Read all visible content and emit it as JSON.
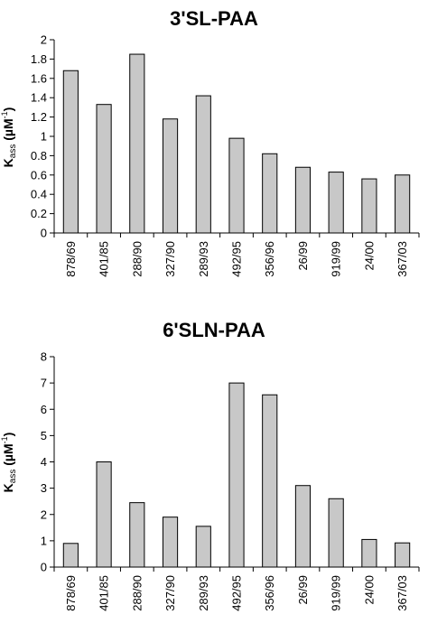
{
  "chart_data": [
    {
      "type": "bar",
      "title": "3'SL-PAA",
      "ylabel_main": "K",
      "ylabel_sub": "ass",
      "ylabel_unit": " (µM",
      "ylabel_sup": "-1",
      "ylabel_close": ")",
      "ylim": [
        0,
        2
      ],
      "yticks": [
        "0",
        "0.2",
        "0.4",
        "0.6",
        "0.8",
        "1",
        "1.2",
        "1.4",
        "1.6",
        "1.8",
        "2"
      ],
      "ytick_values": [
        0,
        0.2,
        0.4,
        0.6,
        0.8,
        1,
        1.2,
        1.4,
        1.6,
        1.8,
        2
      ],
      "categories": [
        "878/69",
        "401/85",
        "288/90",
        "327/90",
        "289/93",
        "492/95",
        "356/96",
        "26/99",
        "919/99",
        "24/00",
        "367/03"
      ],
      "values": [
        1.68,
        1.33,
        1.85,
        1.18,
        1.42,
        0.98,
        0.82,
        0.68,
        0.63,
        0.56,
        0.6
      ],
      "grid": false,
      "bar_color": "#c8c8c8"
    },
    {
      "type": "bar",
      "title": "6'SLN-PAA",
      "ylabel_main": "K",
      "ylabel_sub": "ass",
      "ylabel_unit": " (µM",
      "ylabel_sup": "-1",
      "ylabel_close": ")",
      "ylim": [
        0,
        8
      ],
      "yticks": [
        "0",
        "1",
        "2",
        "3",
        "4",
        "5",
        "6",
        "7",
        "8"
      ],
      "ytick_values": [
        0,
        1,
        2,
        3,
        4,
        5,
        6,
        7,
        8
      ],
      "categories": [
        "878/69",
        "401/85",
        "288/90",
        "327/90",
        "289/93",
        "492/95",
        "356/96",
        "26/99",
        "919/99",
        "24/00",
        "367/03"
      ],
      "values": [
        0.9,
        4.0,
        2.45,
        1.9,
        1.55,
        7.0,
        6.55,
        3.1,
        2.6,
        1.05,
        0.92
      ],
      "grid": false,
      "bar_color": "#c8c8c8"
    }
  ]
}
